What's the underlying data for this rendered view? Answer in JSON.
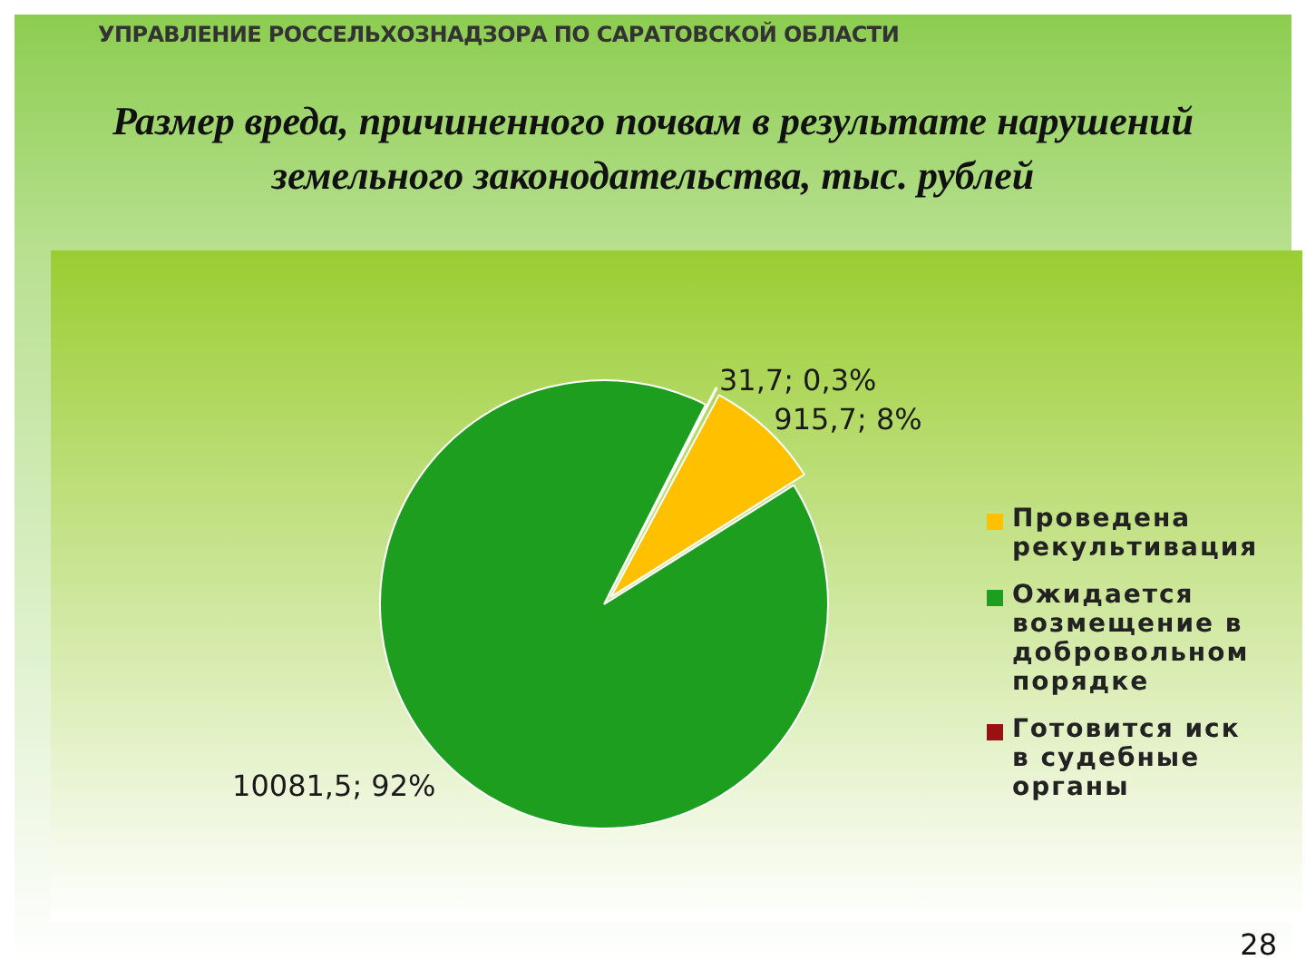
{
  "chart_data": {
    "type": "pie",
    "title": "Размер вреда, причиненного почвам в результате нарушений земельного законодательства, тыс. рублей",
    "annotations": [
      "УПРАВЛЕНИЕ РОССЕЛЬХОЗНАДЗОРА ПО САРАТОВСКОЙ ОБЛАСТИ",
      "28"
    ],
    "categories": [
      "Проведена рекультивация",
      "Ожидается возмещение в добровольном порядке",
      "Готовится иск в судебные органы"
    ],
    "values": [
      915.7,
      10081.5,
      31.7
    ],
    "value_labels": [
      "915,7; 8%",
      "10081,5; 92%",
      "31,7; 0,3%"
    ],
    "colors": [
      "#ffc000",
      "#1e9e1e",
      "#9b1010"
    ],
    "legend": "right"
  }
}
